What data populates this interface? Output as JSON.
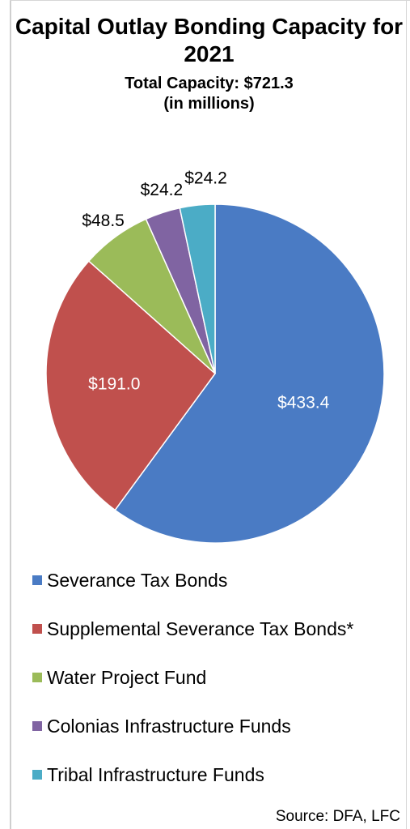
{
  "chart_data": {
    "type": "pie",
    "title": "Capital Outlay Bonding Capacity for 2021",
    "subtitle_lines": [
      "Total Capacity: $721.3",
      "(in millions)"
    ],
    "slices": [
      {
        "name": "Severance Tax Bonds",
        "value": 433.4,
        "label": "$433.4",
        "color": "#4a7bc4",
        "label_color": "#ffffff"
      },
      {
        "name": "Supplemental Severance Tax Bonds*",
        "value": 191.0,
        "label": "$191.0",
        "color": "#c0504d",
        "label_color": "#ffffff"
      },
      {
        "name": "Water Project Fund",
        "value": 48.5,
        "label": "$48.5",
        "color": "#9bbb59",
        "label_color": "#000000"
      },
      {
        "name": "Colonias Infrastructure Funds",
        "value": 24.2,
        "label": "$24.2",
        "color": "#8064a2",
        "label_color": "#000000"
      },
      {
        "name": "Tribal Infrastructure Funds",
        "value": 24.2,
        "label": "$24.2",
        "color": "#4bacc6",
        "label_color": "#000000"
      }
    ],
    "start_angle_deg": 0,
    "direction": "clockwise",
    "legend_position": "bottom"
  },
  "source": "Source: DFA, LFC"
}
